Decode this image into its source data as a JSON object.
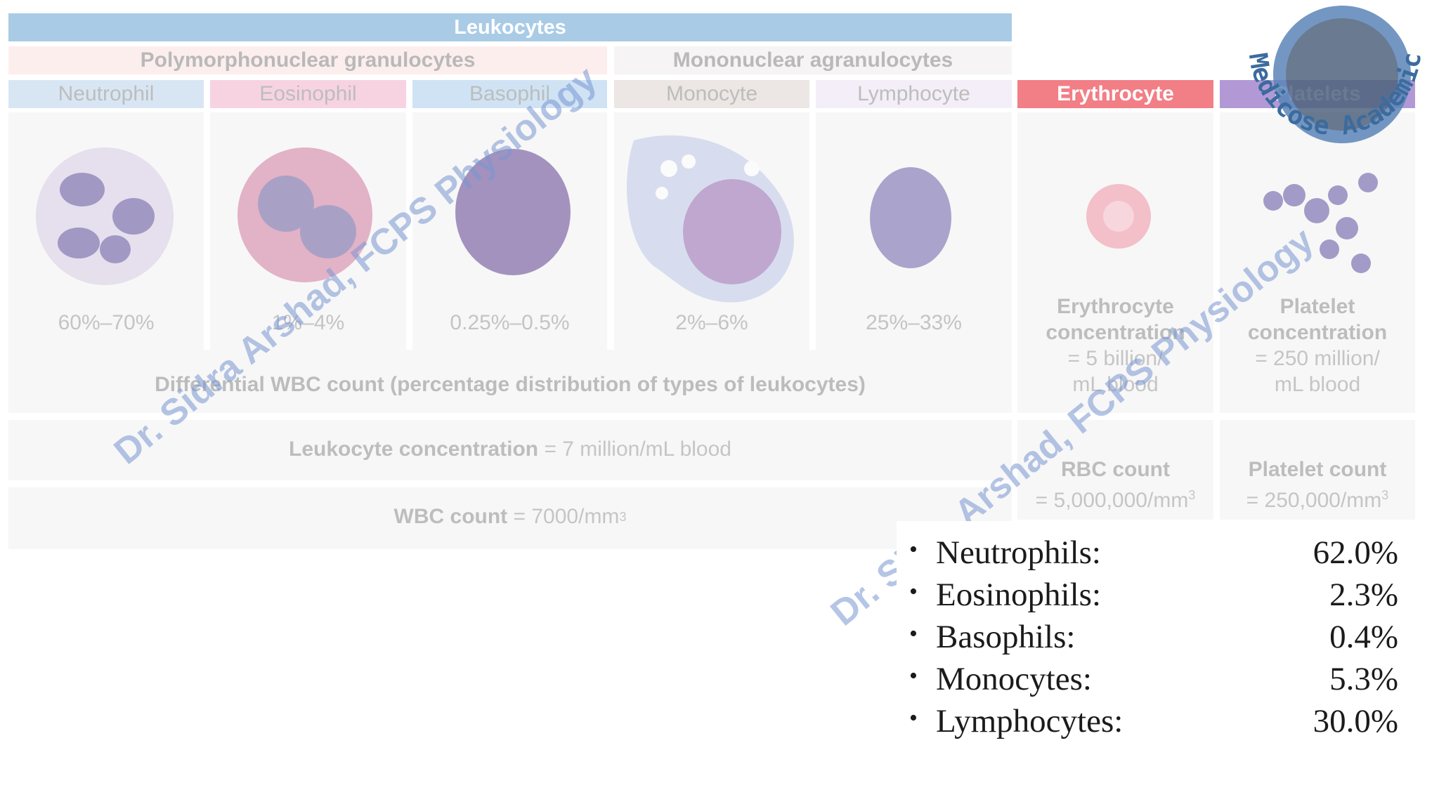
{
  "header": {
    "leukocytes": "Leukocytes",
    "polymorphonuclear": "Polymorphonuclear granulocytes",
    "mononuclear": "Mononuclear agranulocytes"
  },
  "cells": [
    {
      "name": "Neutrophil",
      "percent": "60%–70%",
      "header_color": "#d8e6f4"
    },
    {
      "name": "Eosinophil",
      "percent": "1%–4%",
      "header_color": "#f7d3e1"
    },
    {
      "name": "Basophil",
      "percent": "0.25%–0.5%",
      "header_color": "#cfe3f4"
    },
    {
      "name": "Monocyte",
      "percent": "2%–6%",
      "header_color": "#ece6e4"
    },
    {
      "name": "Lymphocyte",
      "percent": "25%–33%",
      "header_color": "#f3eef7"
    }
  ],
  "erythrocyte": {
    "title": "Erythrocyte",
    "header_color": "#f27e86",
    "conc_label_1": "Erythrocyte",
    "conc_label_2": "concentration",
    "conc_value_1": "= 5 billion/",
    "conc_value_2": "mL blood",
    "count_label": "RBC count",
    "count_value": "= 5,000,000/mm",
    "count_sup": "3"
  },
  "platelets": {
    "title": "Platelets",
    "header_color": "#b299d6",
    "conc_label_1": "Platelet",
    "conc_label_2": "concentration",
    "conc_value_1": "= 250 million/",
    "conc_value_2": "mL blood",
    "count_label": "Platelet count",
    "count_value": "= 250,000/mm",
    "count_sup": "3"
  },
  "differential_caption": "Differential WBC count (percentage distribution of types of leukocytes)",
  "leukocyte_concentration": {
    "label": "Leukocyte concentration",
    "value": "= 7 million/mL blood"
  },
  "wbc_count": {
    "label": "WBC count",
    "value": "= 7000/mm",
    "sup": "3"
  },
  "list": [
    {
      "name": "Neutrophils:",
      "value": "62.0%"
    },
    {
      "name": "Eosinophils:",
      "value": "2.3%"
    },
    {
      "name": "Basophils:",
      "value": "0.4%"
    },
    {
      "name": "Monocytes:",
      "value": "5.3%"
    },
    {
      "name": "Lymphocytes:",
      "value": "30.0%"
    }
  ],
  "watermark": {
    "text": "Dr. Sidra Arshad, FCPS Physiology",
    "logo_text": "Medicose Academics"
  }
}
